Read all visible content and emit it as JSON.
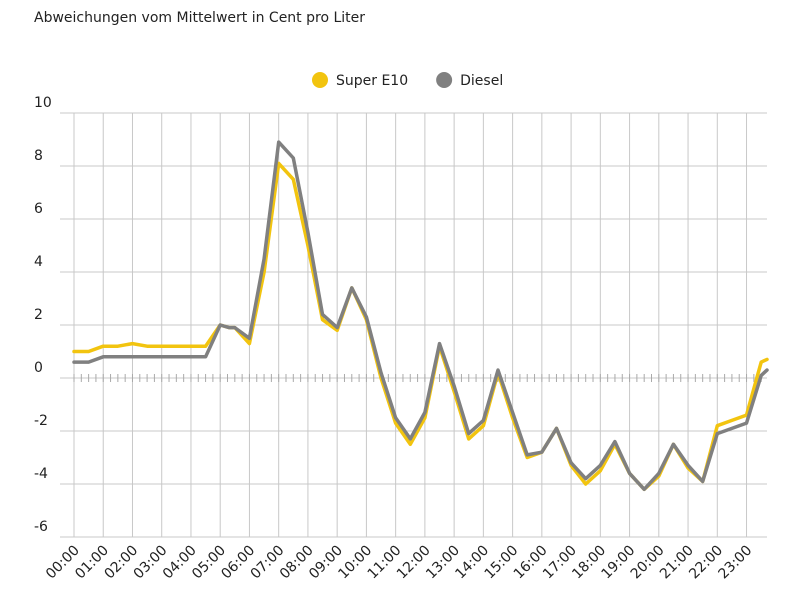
{
  "chart_data": {
    "type": "line",
    "title": "Abweichungen vom Mittelwert in Cent pro Liter",
    "x": [
      0,
      0.5,
      1,
      1.5,
      2,
      2.5,
      3,
      3.5,
      4,
      4.5,
      5,
      5.3,
      5.5,
      6,
      6.5,
      7,
      7.5,
      8,
      8.5,
      9,
      9.5,
      10,
      10.5,
      11,
      11.5,
      12,
      12.5,
      13,
      13.5,
      14,
      14.5,
      15,
      15.5,
      16,
      16.5,
      17,
      17.5,
      18,
      18.5,
      19,
      19.5,
      20,
      20.5,
      21,
      21.5,
      22,
      22.5,
      23,
      23.5,
      23.7
    ],
    "series": [
      {
        "name": "Super E10",
        "color": "#f2c40f",
        "values": [
          1.0,
          1.0,
          1.2,
          1.2,
          1.3,
          1.2,
          1.2,
          1.2,
          1.2,
          1.2,
          2.0,
          1.9,
          1.9,
          1.3,
          4.0,
          8.1,
          7.5,
          5.0,
          2.2,
          1.8,
          3.4,
          2.2,
          0.0,
          -1.7,
          -2.5,
          -1.5,
          1.2,
          -0.5,
          -2.3,
          -1.8,
          0.2,
          -1.5,
          -3.0,
          -2.8,
          -1.9,
          -3.3,
          -4.0,
          -3.5,
          -2.5,
          -3.6,
          -4.2,
          -3.7,
          -2.5,
          -3.4,
          -3.9,
          -1.8,
          -1.6,
          -1.4,
          0.6,
          0.7
        ]
      },
      {
        "name": "Diesel",
        "color": "#808080",
        "values": [
          0.6,
          0.6,
          0.8,
          0.8,
          0.8,
          0.8,
          0.8,
          0.8,
          0.8,
          0.8,
          2.0,
          1.9,
          1.9,
          1.5,
          4.5,
          8.9,
          8.3,
          5.5,
          2.4,
          1.9,
          3.4,
          2.3,
          0.2,
          -1.5,
          -2.3,
          -1.3,
          1.3,
          -0.3,
          -2.1,
          -1.6,
          0.3,
          -1.3,
          -2.9,
          -2.8,
          -1.9,
          -3.2,
          -3.8,
          -3.3,
          -2.4,
          -3.6,
          -4.2,
          -3.6,
          -2.5,
          -3.3,
          -3.9,
          -2.1,
          -1.9,
          -1.7,
          0.1,
          0.3
        ]
      }
    ],
    "xlim": [
      0,
      23.7
    ],
    "xticks": [
      {
        "value": 0,
        "label": "00:00"
      },
      {
        "value": 1,
        "label": "01:00"
      },
      {
        "value": 2,
        "label": "02:00"
      },
      {
        "value": 3,
        "label": "03:00"
      },
      {
        "value": 4,
        "label": "04:00"
      },
      {
        "value": 5,
        "label": "05:00"
      },
      {
        "value": 6,
        "label": "06:00"
      },
      {
        "value": 7,
        "label": "07:00"
      },
      {
        "value": 8,
        "label": "08:00"
      },
      {
        "value": 9,
        "label": "09:00"
      },
      {
        "value": 10,
        "label": "10:00"
      },
      {
        "value": 11,
        "label": "11:00"
      },
      {
        "value": 12,
        "label": "12:00"
      },
      {
        "value": 13,
        "label": "13:00"
      },
      {
        "value": 14,
        "label": "14:00"
      },
      {
        "value": 15,
        "label": "15:00"
      },
      {
        "value": 16,
        "label": "16:00"
      },
      {
        "value": 17,
        "label": "17:00"
      },
      {
        "value": 18,
        "label": "18:00"
      },
      {
        "value": 19,
        "label": "19:00"
      },
      {
        "value": 20,
        "label": "20:00"
      },
      {
        "value": 21,
        "label": "21:00"
      },
      {
        "value": 22,
        "label": "22:00"
      },
      {
        "value": 23,
        "label": "23:00"
      }
    ],
    "ylim": [
      -6,
      10
    ],
    "yticks": [
      -6,
      -4,
      -2,
      0,
      2,
      4,
      6,
      8,
      10
    ],
    "grid": true
  }
}
